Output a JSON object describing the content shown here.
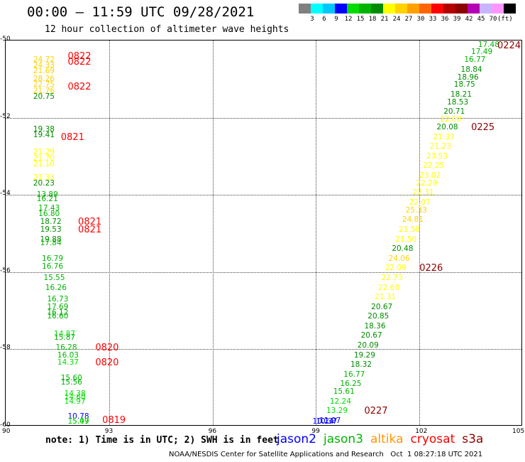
{
  "title": "00:00 – 11:59 UTC 09/28/2021",
  "subtitle": "12 hour collection of altimeter wave heights",
  "legend": {
    "colors": [
      "#808080",
      "#00ffff",
      "#00c8ff",
      "#0000ff",
      "#00dc00",
      "#00b400",
      "#008c00",
      "#ffff00",
      "#ffd200",
      "#ffa000",
      "#ff6400",
      "#ff0000",
      "#b40000",
      "#8c0000",
      "#b400b4",
      "#c8b4ff",
      "#ff96ff",
      "#000000"
    ],
    "ticks": [
      "3",
      "6",
      "9",
      "12",
      "15",
      "18",
      "21",
      "24",
      "27",
      "30",
      "33",
      "36",
      "39",
      "42",
      "45",
      "70"
    ],
    "unit": "(ft)"
  },
  "axes": {
    "x_ticks": [
      "90",
      "93",
      "96",
      "99",
      "102",
      "105"
    ],
    "y_ticks": [
      "-50",
      "-52",
      "-54",
      "-56",
      "-58",
      "-60"
    ],
    "xlim": [
      90,
      105
    ],
    "ylim": [
      -60,
      -50
    ]
  },
  "points": [
    {
      "lon": 90.8,
      "lat": -50.5,
      "v": "24.72",
      "c": "#ffd200"
    },
    {
      "lon": 90.8,
      "lat": -50.65,
      "v": "24.33",
      "c": "#ffd200"
    },
    {
      "lon": 90.8,
      "lat": -50.8,
      "v": "21.69",
      "c": "#ffd200"
    },
    {
      "lon": 90.8,
      "lat": -51.0,
      "v": "28.26",
      "c": "#ffd200"
    },
    {
      "lon": 90.8,
      "lat": -51.15,
      "v": "22.75",
      "c": "#ffd200"
    },
    {
      "lon": 90.8,
      "lat": -51.3,
      "v": "21.76",
      "c": "#ffd200"
    },
    {
      "lon": 90.8,
      "lat": -51.45,
      "v": "20.75",
      "c": "#008c00"
    },
    {
      "lon": 90.8,
      "lat": -52.3,
      "v": "19.38",
      "c": "#008c00"
    },
    {
      "lon": 90.8,
      "lat": -52.45,
      "v": "19.41",
      "c": "#008c00"
    },
    {
      "lon": 90.8,
      "lat": -52.9,
      "v": "21.29",
      "c": "#ffff00"
    },
    {
      "lon": 90.8,
      "lat": -53.05,
      "v": "21.70",
      "c": "#ffff00"
    },
    {
      "lon": 90.8,
      "lat": -53.2,
      "v": "21.10",
      "c": "#ffff00"
    },
    {
      "lon": 90.8,
      "lat": -53.55,
      "v": "21.33",
      "c": "#ffff00"
    },
    {
      "lon": 90.8,
      "lat": -53.7,
      "v": "20.23",
      "c": "#008c00"
    },
    {
      "lon": 90.9,
      "lat": -54.0,
      "v": "13.89",
      "c": "#00b400"
    },
    {
      "lon": 90.9,
      "lat": -54.1,
      "v": "16.21",
      "c": "#00b400"
    },
    {
      "lon": 90.95,
      "lat": -54.35,
      "v": "17.43",
      "c": "#00b400"
    },
    {
      "lon": 90.95,
      "lat": -54.5,
      "v": "16.80",
      "c": "#00b400"
    },
    {
      "lon": 91.0,
      "lat": -54.7,
      "v": "18.72",
      "c": "#008c00"
    },
    {
      "lon": 91.0,
      "lat": -54.9,
      "v": "19.53",
      "c": "#008c00"
    },
    {
      "lon": 91.0,
      "lat": -55.15,
      "v": "19.88",
      "c": "#008c00"
    },
    {
      "lon": 91.0,
      "lat": -55.25,
      "v": "17.84",
      "c": "#00b400"
    },
    {
      "lon": 91.05,
      "lat": -55.65,
      "v": "16.79",
      "c": "#00b400"
    },
    {
      "lon": 91.05,
      "lat": -55.85,
      "v": "16.76",
      "c": "#00b400"
    },
    {
      "lon": 91.1,
      "lat": -56.15,
      "v": "15.55",
      "c": "#00b400"
    },
    {
      "lon": 91.15,
      "lat": -56.4,
      "v": "16.26",
      "c": "#00b400"
    },
    {
      "lon": 91.2,
      "lat": -56.7,
      "v": "16.73",
      "c": "#00b400"
    },
    {
      "lon": 91.2,
      "lat": -56.9,
      "v": "17.69",
      "c": "#00b400"
    },
    {
      "lon": 91.2,
      "lat": -57.05,
      "v": "16.12",
      "c": "#00b400"
    },
    {
      "lon": 91.2,
      "lat": -57.15,
      "v": "16.60",
      "c": "#00b400"
    },
    {
      "lon": 91.4,
      "lat": -57.6,
      "v": "14.87",
      "c": "#00dc00"
    },
    {
      "lon": 91.4,
      "lat": -57.7,
      "v": "15.87",
      "c": "#00b400"
    },
    {
      "lon": 91.45,
      "lat": -57.95,
      "v": "16.28",
      "c": "#00b400"
    },
    {
      "lon": 91.5,
      "lat": -58.15,
      "v": "16.03",
      "c": "#00b400"
    },
    {
      "lon": 91.5,
      "lat": -58.35,
      "v": "14.37",
      "c": "#00dc00"
    },
    {
      "lon": 91.6,
      "lat": -58.75,
      "v": "15.60",
      "c": "#00b400"
    },
    {
      "lon": 91.6,
      "lat": -58.85,
      "v": "15.56",
      "c": "#00b400"
    },
    {
      "lon": 91.7,
      "lat": -59.15,
      "v": "14.38",
      "c": "#00dc00"
    },
    {
      "lon": 91.7,
      "lat": -59.25,
      "v": "14.60",
      "c": "#00dc00"
    },
    {
      "lon": 91.7,
      "lat": -59.35,
      "v": "14.97",
      "c": "#00dc00"
    },
    {
      "lon": 91.8,
      "lat": -59.75,
      "v": "10.78",
      "c": "#0000ff"
    },
    {
      "lon": 91.8,
      "lat": -60.0,
      "v": "15.49",
      "c": "#00b400"
    },
    {
      "lon": 91.8,
      "lat": -60.1,
      "v": "15.07",
      "c": "#00dc00"
    },
    {
      "lon": 103.7,
      "lat": -50.1,
      "v": "17.48",
      "c": "#00b400"
    },
    {
      "lon": 103.5,
      "lat": -50.3,
      "v": "17.49",
      "c": "#00b400"
    },
    {
      "lon": 103.3,
      "lat": -50.5,
      "v": "16.77",
      "c": "#00b400"
    },
    {
      "lon": 103.2,
      "lat": -50.75,
      "v": "18.84",
      "c": "#008c00"
    },
    {
      "lon": 103.1,
      "lat": -50.95,
      "v": "18.96",
      "c": "#008c00"
    },
    {
      "lon": 103.0,
      "lat": -51.15,
      "v": "18.75",
      "c": "#008c00"
    },
    {
      "lon": 102.9,
      "lat": -51.4,
      "v": "18.21",
      "c": "#008c00"
    },
    {
      "lon": 102.8,
      "lat": -51.6,
      "v": "18.53",
      "c": "#008c00"
    },
    {
      "lon": 102.7,
      "lat": -51.85,
      "v": "20.71",
      "c": "#008c00"
    },
    {
      "lon": 102.6,
      "lat": -52.05,
      "v": "22.00",
      "c": "#ffff00"
    },
    {
      "lon": 102.5,
      "lat": -52.25,
      "v": "20.08",
      "c": "#008c00"
    },
    {
      "lon": 102.4,
      "lat": -52.5,
      "v": "21.33",
      "c": "#ffff00"
    },
    {
      "lon": 102.3,
      "lat": -52.75,
      "v": "21.23",
      "c": "#ffff00"
    },
    {
      "lon": 102.2,
      "lat": -53.0,
      "v": "23.53",
      "c": "#ffff00"
    },
    {
      "lon": 102.1,
      "lat": -53.25,
      "v": "22.25",
      "c": "#ffff00"
    },
    {
      "lon": 102.0,
      "lat": -53.5,
      "v": "23.02",
      "c": "#ffff00"
    },
    {
      "lon": 101.9,
      "lat": -53.7,
      "v": "22.29",
      "c": "#ffff00"
    },
    {
      "lon": 101.8,
      "lat": -53.95,
      "v": "22.31",
      "c": "#ffff00"
    },
    {
      "lon": 101.7,
      "lat": -54.2,
      "v": "22.07",
      "c": "#ffff00"
    },
    {
      "lon": 101.6,
      "lat": -54.4,
      "v": "25.33",
      "c": "#ffd200"
    },
    {
      "lon": 101.5,
      "lat": -54.65,
      "v": "24.81",
      "c": "#ffd200"
    },
    {
      "lon": 101.4,
      "lat": -54.9,
      "v": "21.58",
      "c": "#ffff00"
    },
    {
      "lon": 101.3,
      "lat": -55.15,
      "v": "21.50",
      "c": "#ffff00"
    },
    {
      "lon": 101.2,
      "lat": -55.4,
      "v": "20.48",
      "c": "#008c00"
    },
    {
      "lon": 101.1,
      "lat": -55.65,
      "v": "24.06",
      "c": "#ffd200"
    },
    {
      "lon": 101.0,
      "lat": -55.9,
      "v": "22.09",
      "c": "#ffff00"
    },
    {
      "lon": 100.9,
      "lat": -56.15,
      "v": "22.73",
      "c": "#ffff00"
    },
    {
      "lon": 100.8,
      "lat": -56.4,
      "v": "22.68",
      "c": "#ffff00"
    },
    {
      "lon": 100.7,
      "lat": -56.65,
      "v": "21.31",
      "c": "#ffff00"
    },
    {
      "lon": 100.6,
      "lat": -56.9,
      "v": "20.67",
      "c": "#008c00"
    },
    {
      "lon": 100.5,
      "lat": -57.15,
      "v": "20.85",
      "c": "#008c00"
    },
    {
      "lon": 100.4,
      "lat": -57.4,
      "v": "18.36",
      "c": "#008c00"
    },
    {
      "lon": 100.3,
      "lat": -57.65,
      "v": "20.67",
      "c": "#008c00"
    },
    {
      "lon": 100.2,
      "lat": -57.9,
      "v": "20.09",
      "c": "#008c00"
    },
    {
      "lon": 100.1,
      "lat": -58.15,
      "v": "19.29",
      "c": "#008c00"
    },
    {
      "lon": 100.0,
      "lat": -58.4,
      "v": "18.32",
      "c": "#008c00"
    },
    {
      "lon": 99.8,
      "lat": -58.65,
      "v": "16.77",
      "c": "#00b400"
    },
    {
      "lon": 99.7,
      "lat": -58.9,
      "v": "16.25",
      "c": "#00b400"
    },
    {
      "lon": 99.5,
      "lat": -59.1,
      "v": "15.61",
      "c": "#00b400"
    },
    {
      "lon": 99.4,
      "lat": -59.35,
      "v": "12.24",
      "c": "#00dc00"
    },
    {
      "lon": 99.3,
      "lat": -59.6,
      "v": "13.29",
      "c": "#00dc00"
    },
    {
      "lon": 99.1,
      "lat": -59.85,
      "v": "11.97",
      "c": "#0000ff"
    },
    {
      "lon": 99.0,
      "lat": -60.1,
      "v": "10.37",
      "c": "#0000ff"
    },
    {
      "lon": 98.9,
      "lat": -60.3,
      "v": "10.24",
      "c": "#0000ff"
    }
  ],
  "time_labels": [
    {
      "lon": 91.8,
      "lat": -50.4,
      "v": "0822",
      "c": "#ff0000"
    },
    {
      "lon": 91.8,
      "lat": -50.55,
      "v": "0822",
      "c": "#ff0000"
    },
    {
      "lon": 91.8,
      "lat": -51.2,
      "v": "0822",
      "c": "#ff0000"
    },
    {
      "lon": 91.6,
      "lat": -52.5,
      "v": "0821",
      "c": "#ff0000"
    },
    {
      "lon": 92.1,
      "lat": -54.7,
      "v": "0821",
      "c": "#ff0000"
    },
    {
      "lon": 92.1,
      "lat": -54.9,
      "v": "0821",
      "c": "#ff0000"
    },
    {
      "lon": 92.6,
      "lat": -57.95,
      "v": "0820",
      "c": "#ff0000"
    },
    {
      "lon": 92.6,
      "lat": -58.35,
      "v": "0820",
      "c": "#ff0000"
    },
    {
      "lon": 92.8,
      "lat": -60.0,
      "v": "0819",
      "c": "#ff0000"
    },
    {
      "lon": 104.7,
      "lat": -50.1,
      "v": "0224",
      "c": "#8c0000"
    },
    {
      "lon": 103.5,
      "lat": -52.25,
      "v": "0225",
      "c": "#8c0000"
    },
    {
      "lon": 102.0,
      "lat": -55.9,
      "v": "0226",
      "c": "#8c0000"
    },
    {
      "lon": 100.4,
      "lat": -59.6,
      "v": "0227",
      "c": "#8c0000"
    }
  ],
  "note": "note: 1) Time is in UTC; 2) SWH is in feet",
  "satellites": [
    {
      "name": "jason2",
      "c": "#0000ff"
    },
    {
      "name": "jason3",
      "c": "#00b400"
    },
    {
      "name": "altika",
      "c": "#ff9600"
    },
    {
      "name": "cryosat",
      "c": "#ff0000"
    },
    {
      "name": "s3a",
      "c": "#8c0000"
    }
  ],
  "credit": "NOAA/NESDIS Center for Satellite Applications and Research   Oct  1 08:27:18 UTC 2021"
}
